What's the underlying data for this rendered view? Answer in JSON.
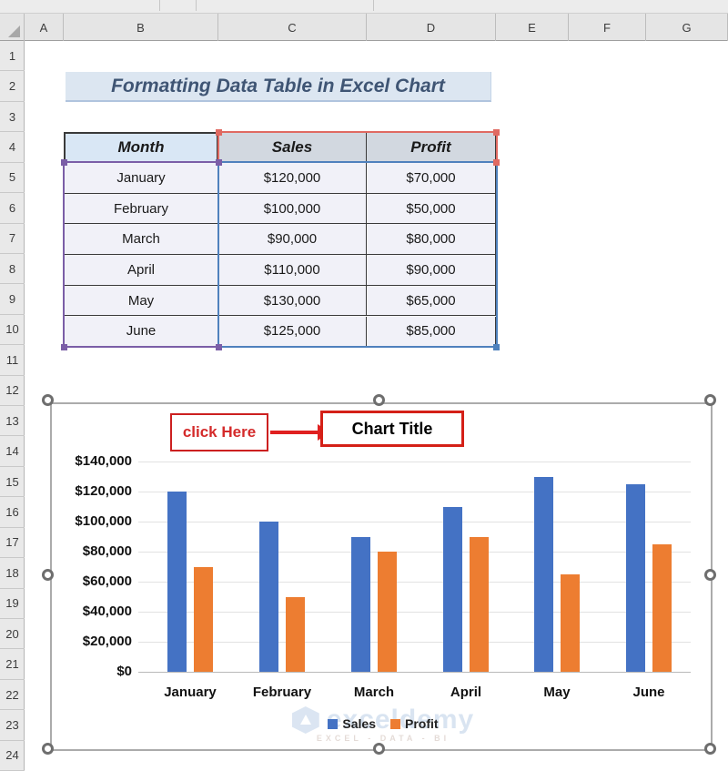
{
  "spreadsheet": {
    "column_headers": [
      "A",
      "B",
      "C",
      "D",
      "E",
      "F",
      "G"
    ],
    "row_numbers": [
      "1",
      "2",
      "3",
      "4",
      "5",
      "6",
      "7",
      "8",
      "9",
      "10",
      "11",
      "12",
      "13",
      "14",
      "15",
      "16",
      "17",
      "18",
      "19",
      "20",
      "21",
      "22",
      "23",
      "24"
    ],
    "title": "Formatting Data Table in Excel Chart"
  },
  "table": {
    "headers": {
      "month": "Month",
      "sales": "Sales",
      "profit": "Profit"
    },
    "rows": [
      {
        "month": "January",
        "sales": "$120,000",
        "profit": "$70,000"
      },
      {
        "month": "February",
        "sales": "$100,000",
        "profit": "$50,000"
      },
      {
        "month": "March",
        "sales": "$90,000",
        "profit": "$80,000"
      },
      {
        "month": "April",
        "sales": "$110,000",
        "profit": "$90,000"
      },
      {
        "month": "May",
        "sales": "$130,000",
        "profit": "$65,000"
      },
      {
        "month": "June",
        "sales": "$125,000",
        "profit": "$85,000"
      }
    ]
  },
  "chart": {
    "annotation_label": "click Here",
    "title": "Chart Title",
    "y_axis_labels": [
      "$140,000",
      "$120,000",
      "$100,000",
      "$80,000",
      "$60,000",
      "$40,000",
      "$20,000",
      "$0"
    ],
    "x_axis_labels": [
      "January",
      "February",
      "March",
      "April",
      "May",
      "June"
    ],
    "legend": [
      "Sales",
      "Profit"
    ],
    "watermark_name": "exceldemy",
    "watermark_tagline": "EXCEL - DATA - BI"
  },
  "chart_data": {
    "type": "bar",
    "title": "Chart Title",
    "categories": [
      "January",
      "February",
      "March",
      "April",
      "May",
      "June"
    ],
    "series": [
      {
        "name": "Sales",
        "color": "#4472c4",
        "values": [
          120000,
          100000,
          90000,
          110000,
          130000,
          125000
        ]
      },
      {
        "name": "Profit",
        "color": "#ed7d31",
        "values": [
          70000,
          50000,
          80000,
          90000,
          65000,
          85000
        ]
      }
    ],
    "ylim": [
      0,
      140000
    ],
    "ytick_step": 20000,
    "grid": true,
    "legend_position": "bottom"
  },
  "colors": {
    "sales_bar": "#4472c4",
    "profit_bar": "#ed7d31",
    "annotation_red": "#d42a2a",
    "selection_red": "#e06a62",
    "selection_purple": "#7b5ea7",
    "selection_blue": "#4f81bd",
    "title_text": "#3f5574",
    "title_bg": "#dce6f1",
    "month_header_bg": "#d9e7f5",
    "money_header_bg": "#d2d8e0"
  }
}
